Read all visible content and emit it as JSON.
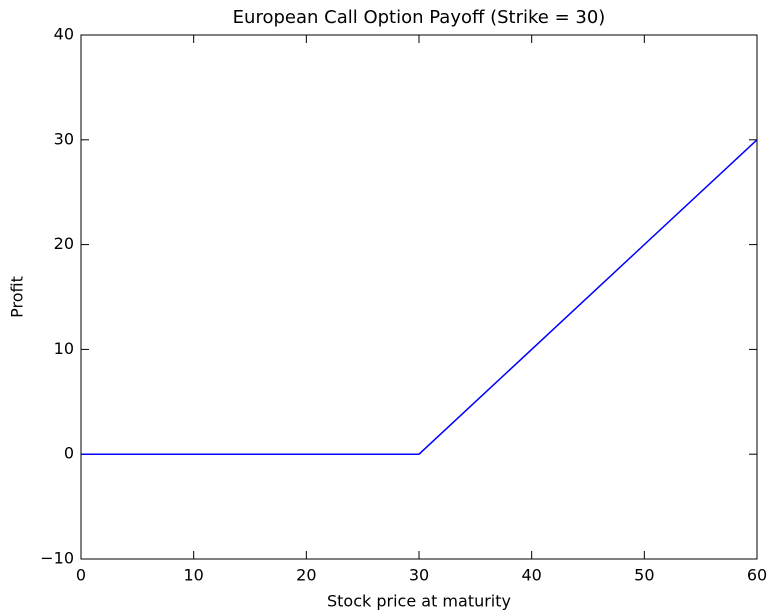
{
  "chart_data": {
    "type": "line",
    "title": "European Call Option Payoff (Strike = 30)",
    "xlabel": "Stock price at maturity",
    "ylabel": "Profit",
    "x": [
      0,
      30,
      60
    ],
    "series": [
      {
        "color": "#0000ff",
        "values": [
          0,
          0,
          30
        ]
      }
    ],
    "xlim": [
      0,
      60
    ],
    "xticks": [
      0,
      10,
      20,
      30,
      40,
      50,
      60
    ],
    "ylim": [
      -10,
      40
    ],
    "yticks": [
      {
        "value": -10,
        "label": "−10"
      },
      0,
      10,
      20,
      30,
      40
    ],
    "grid": false
  }
}
